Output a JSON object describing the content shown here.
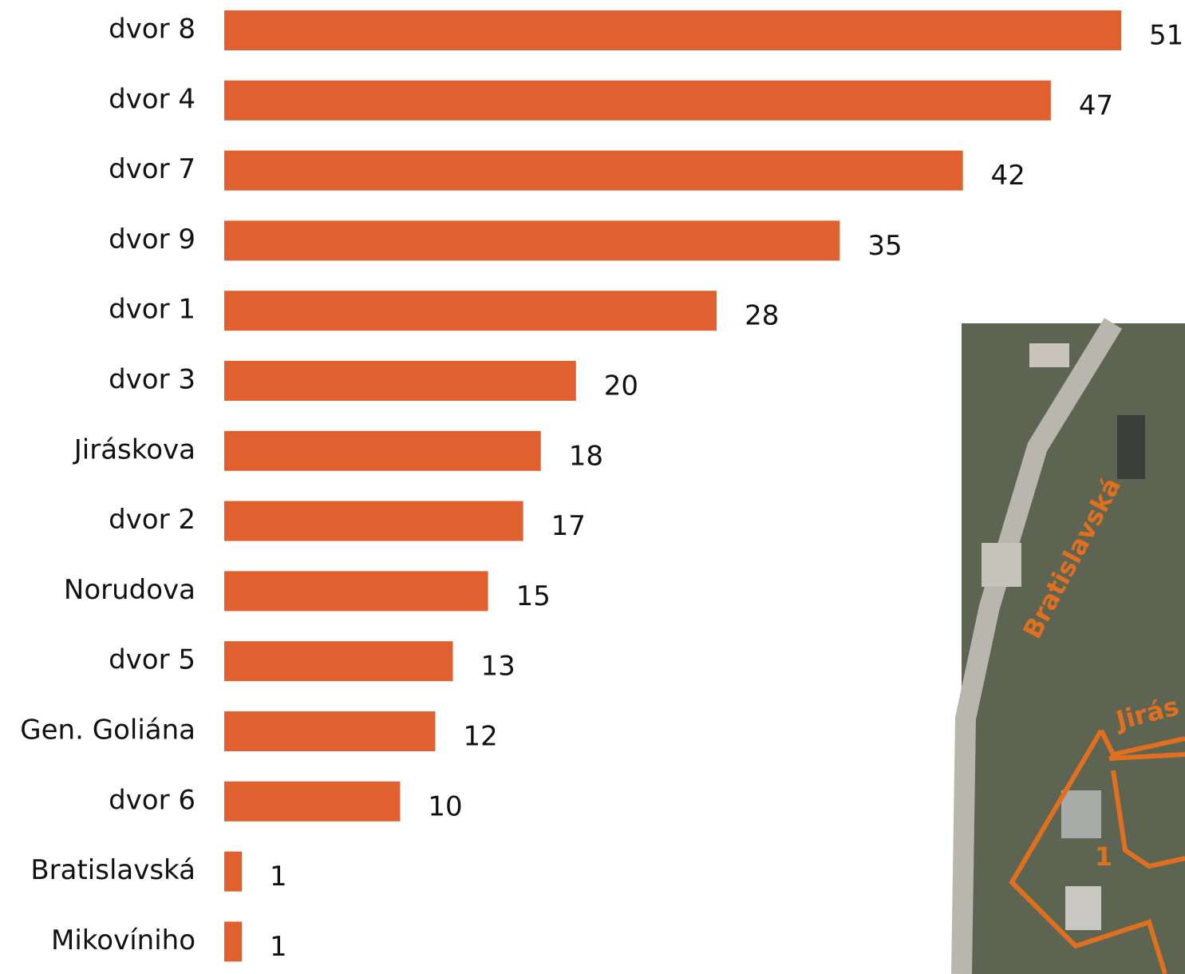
{
  "chart_data": {
    "type": "bar",
    "orientation": "horizontal",
    "categories": [
      "dvor 8",
      "dvor 4",
      "dvor 7",
      "dvor 9",
      "dvor 1",
      "dvor 3",
      "Jiráskova",
      "dvor 2",
      "Norudova",
      "dvor 5",
      "Gen. Goliána",
      "dvor 6",
      "Bratislavská",
      "Mikovíniho"
    ],
    "values": [
      51,
      47,
      42,
      35,
      28,
      20,
      18,
      17,
      15,
      13,
      12,
      10,
      1,
      1
    ],
    "color": "#e0602f",
    "map_labels": [
      "Bratislavská",
      "Jirás",
      "1"
    ]
  }
}
